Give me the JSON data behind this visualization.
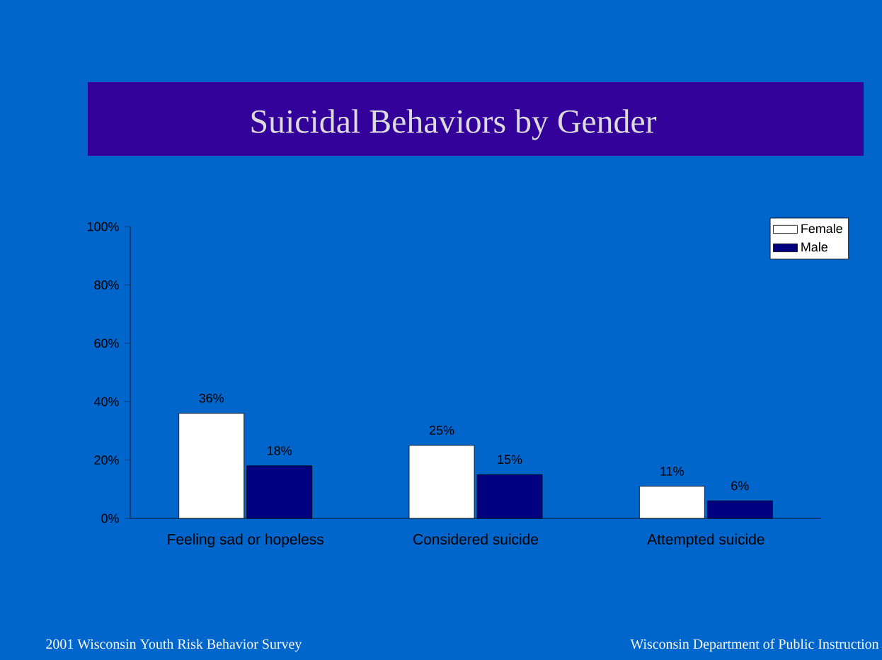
{
  "chart_data": {
    "type": "bar",
    "title": "Suicidal Behaviors by Gender",
    "categories": [
      "Feeling sad or hopeless",
      "Considered suicide",
      "Attempted suicide"
    ],
    "series": [
      {
        "name": "Female",
        "color": "#ffffff",
        "values": [
          36,
          25,
          11
        ],
        "value_labels": [
          "36%",
          "25%",
          "11%"
        ]
      },
      {
        "name": "Male",
        "color": "#000080",
        "values": [
          18,
          15,
          6
        ],
        "value_labels": [
          "18%",
          "15%",
          "6%"
        ]
      }
    ],
    "ylim": [
      0,
      100
    ],
    "yticks": [
      {
        "value": 0,
        "label": "0%"
      },
      {
        "value": 20,
        "label": "20%"
      },
      {
        "value": 40,
        "label": "40%"
      },
      {
        "value": 60,
        "label": "60%"
      },
      {
        "value": 80,
        "label": "80%"
      },
      {
        "value": 100,
        "label": "100%"
      }
    ],
    "grid": false,
    "legend": "top right",
    "annotations": [
      "2001 Wisconsin Youth Risk Behavior Survey",
      "Wisconsin Department of Public Instruction"
    ]
  }
}
